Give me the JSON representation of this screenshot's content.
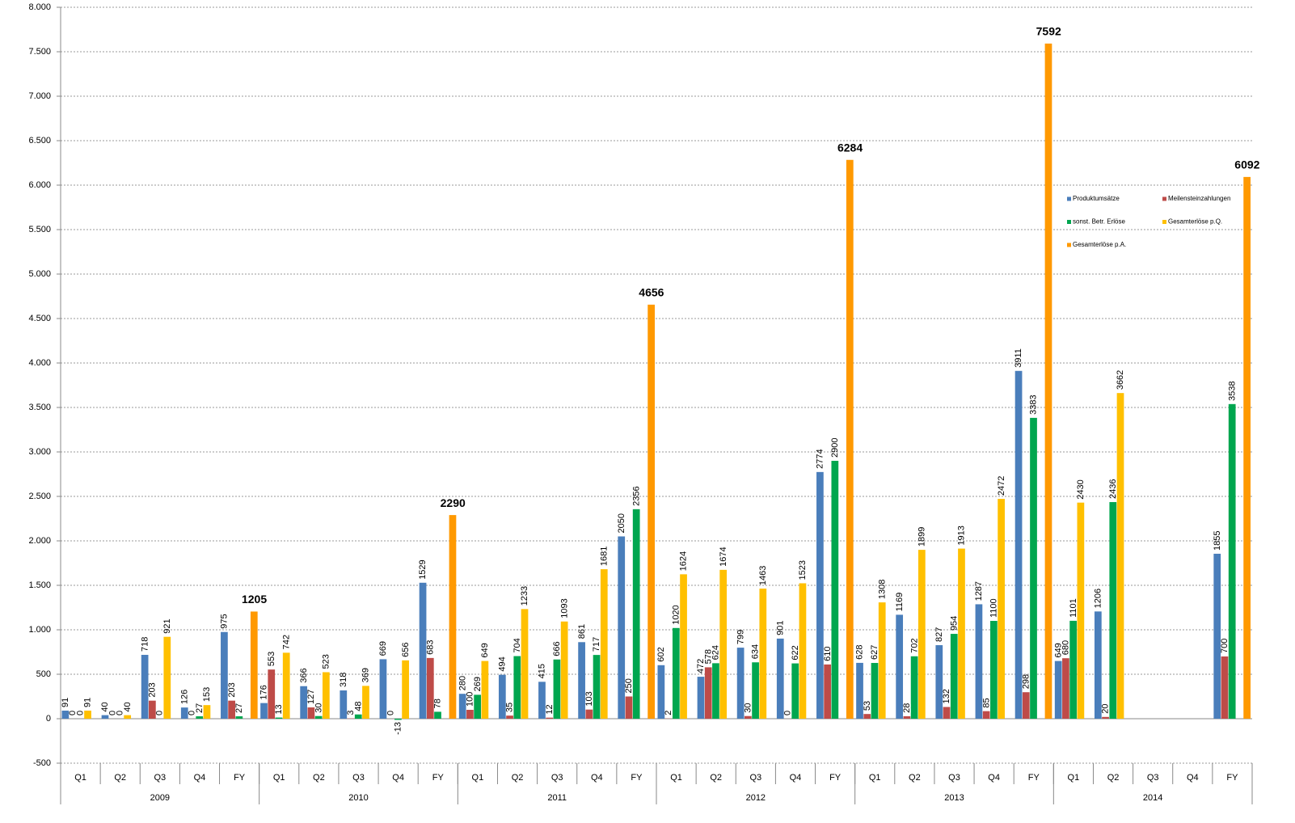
{
  "chart_data": {
    "type": "bar",
    "categories": [
      "Q1",
      "Q2",
      "Q3",
      "Q4",
      "FY",
      "Q1",
      "Q2",
      "Q3",
      "Q4",
      "FY",
      "Q1",
      "Q2",
      "Q3",
      "Q4",
      "FY",
      "Q1",
      "Q2",
      "Q3",
      "Q4",
      "FY",
      "Q1",
      "Q2",
      "Q3",
      "Q4",
      "FY",
      "Q1",
      "Q2",
      "Q3",
      "Q4",
      "FY"
    ],
    "years": [
      "2009",
      "2010",
      "2011",
      "2012",
      "2013",
      "2014"
    ],
    "series": [
      {
        "name": "Produktumsätze",
        "color": "#4a7ebb",
        "values": [
          91,
          40,
          718,
          126,
          975,
          176,
          366,
          318,
          669,
          1529,
          280,
          494,
          415,
          861,
          2050,
          602,
          472,
          799,
          901,
          2774,
          628,
          1169,
          827,
          1287,
          3911,
          649,
          1206,
          null,
          null,
          1855
        ]
      },
      {
        "name": "Meilensteinzahlungen",
        "color": "#be4b48",
        "values": [
          0,
          0,
          203,
          0,
          203,
          553,
          127,
          3,
          0,
          683,
          100,
          35,
          12,
          103,
          250,
          2,
          578,
          30,
          0,
          610,
          53,
          28,
          132,
          85,
          298,
          680,
          20,
          null,
          null,
          700
        ]
      },
      {
        "name": "sonst. Betr. Erlöse",
        "color": "#00a64f",
        "values": [
          0,
          0,
          0,
          27,
          27,
          13,
          30,
          48,
          -13,
          78,
          269,
          704,
          666,
          717,
          2356,
          1020,
          624,
          634,
          622,
          2900,
          627,
          702,
          954,
          1100,
          3383,
          1101,
          2436,
          null,
          null,
          3538
        ]
      },
      {
        "name": "Gesamterlöse p.Q.",
        "color": "#ffc000",
        "values": [
          91,
          40,
          921,
          153,
          null,
          742,
          523,
          369,
          656,
          null,
          649,
          1233,
          1093,
          1681,
          null,
          1624,
          1674,
          1463,
          1523,
          null,
          1308,
          1899,
          1913,
          2472,
          null,
          2430,
          3662,
          null,
          null,
          null
        ]
      },
      {
        "name": "Gesamterlöse p.A.",
        "color": "#ff9900",
        "emphasis": true,
        "values": [
          null,
          null,
          null,
          null,
          1205,
          null,
          null,
          null,
          null,
          2290,
          null,
          null,
          null,
          null,
          4656,
          null,
          null,
          null,
          null,
          6284,
          null,
          null,
          null,
          null,
          7592,
          null,
          null,
          null,
          null,
          6092
        ]
      }
    ],
    "ylim": [
      -500,
      8000
    ],
    "yticks": [
      -500,
      0,
      500,
      {
        "value": 1000,
        "label": "1.000"
      },
      {
        "value": 1500,
        "label": "1.500"
      },
      {
        "value": 2000,
        "label": "2.000"
      },
      {
        "value": 2500,
        "label": "2.500"
      },
      {
        "value": 3000,
        "label": "3.000"
      },
      {
        "value": 3500,
        "label": "3.500"
      },
      {
        "value": 4000,
        "label": "4.000"
      },
      {
        "value": 4500,
        "label": "4.500"
      },
      {
        "value": 5000,
        "label": "5.000"
      },
      {
        "value": 5500,
        "label": "5.500"
      },
      {
        "value": 6000,
        "label": "6.000"
      },
      {
        "value": 6500,
        "label": "6.500"
      },
      {
        "value": 7000,
        "label": "7.000"
      },
      {
        "value": 7500,
        "label": "7.500"
      },
      {
        "value": 8000,
        "label": "8.000"
      }
    ],
    "grid": true,
    "legend": "upper right"
  }
}
